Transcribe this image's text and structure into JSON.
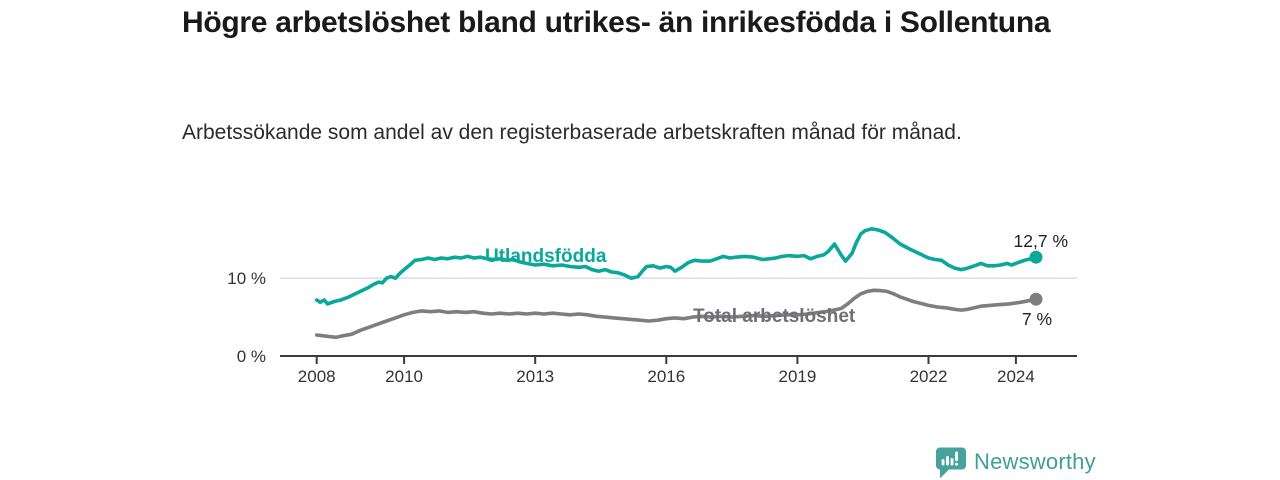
{
  "page": {
    "title": "Högre arbetslöshet bland utrikes- än inrikesfödda i Sollentuna",
    "subtitle": "Arbetssökande som andel av den registerbaserade arbetskraften månad för månad."
  },
  "branding": {
    "name": "Newsworthy",
    "icon": "newsworthy-speech-bubble-bar-chart-icon",
    "color": "#46a39c"
  },
  "colors": {
    "accent_teal": "#0aa79b",
    "line_gray": "#7e7e82",
    "label_gray": "#6f6f74",
    "text_dark": "#1a1a1a",
    "axis": "#3b3b3b",
    "gridline": "#d9d9d9",
    "value_label": "#222222"
  },
  "chart_data": {
    "type": "line",
    "title": "Högre arbetslöshet bland utrikes- än inrikesfödda i Sollentuna",
    "subtitle": "Arbetssökande som andel av den registerbaserade arbetskraften månad för månad.",
    "unit": "%",
    "grid": "horizontal-only",
    "legend_position": "inline-labels",
    "x_range_years": [
      2008.0,
      2024.5
    ],
    "y_axis": {
      "range": [
        0,
        17
      ],
      "ticks": [
        {
          "value": 0,
          "label": "0 %"
        },
        {
          "value": 10,
          "label": "10 %"
        }
      ]
    },
    "x_axis": {
      "ticks": [
        {
          "value": 2008,
          "label": "2008"
        },
        {
          "value": 2010,
          "label": "2010"
        },
        {
          "value": 2013,
          "label": "2013"
        },
        {
          "value": 2016,
          "label": "2016"
        },
        {
          "value": 2019,
          "label": "2019"
        },
        {
          "value": 2022,
          "label": "2022"
        },
        {
          "value": 2024,
          "label": "2024"
        }
      ]
    },
    "series": [
      {
        "name": "Utlandsfödda",
        "color": "#0aa79b",
        "end_label": "12,7 %",
        "end_value": 12.7,
        "points": [
          [
            2008.0,
            7.2
          ],
          [
            2008.08,
            6.9
          ],
          [
            2008.17,
            7.2
          ],
          [
            2008.25,
            6.7
          ],
          [
            2008.4,
            7.0
          ],
          [
            2008.55,
            7.2
          ],
          [
            2008.7,
            7.5
          ],
          [
            2008.85,
            7.9
          ],
          [
            2009.0,
            8.3
          ],
          [
            2009.15,
            8.7
          ],
          [
            2009.3,
            9.2
          ],
          [
            2009.42,
            9.5
          ],
          [
            2009.5,
            9.4
          ],
          [
            2009.6,
            10.0
          ],
          [
            2009.7,
            10.2
          ],
          [
            2009.8,
            10.0
          ],
          [
            2009.9,
            10.6
          ],
          [
            2010.0,
            11.1
          ],
          [
            2010.15,
            11.8
          ],
          [
            2010.25,
            12.3
          ],
          [
            2010.4,
            12.4
          ],
          [
            2010.55,
            12.6
          ],
          [
            2010.7,
            12.4
          ],
          [
            2010.85,
            12.6
          ],
          [
            2011.0,
            12.5
          ],
          [
            2011.15,
            12.7
          ],
          [
            2011.3,
            12.6
          ],
          [
            2011.45,
            12.8
          ],
          [
            2011.6,
            12.6
          ],
          [
            2011.75,
            12.7
          ],
          [
            2011.9,
            12.5
          ],
          [
            2012.05,
            12.4
          ],
          [
            2012.2,
            12.5
          ],
          [
            2012.35,
            12.3
          ],
          [
            2012.5,
            12.4
          ],
          [
            2012.65,
            12.1
          ],
          [
            2012.8,
            11.9
          ],
          [
            2013.0,
            11.7
          ],
          [
            2013.2,
            11.8
          ],
          [
            2013.4,
            11.6
          ],
          [
            2013.6,
            11.7
          ],
          [
            2013.8,
            11.5
          ],
          [
            2014.0,
            11.4
          ],
          [
            2014.15,
            11.5
          ],
          [
            2014.3,
            11.1
          ],
          [
            2014.45,
            10.9
          ],
          [
            2014.6,
            11.1
          ],
          [
            2014.75,
            10.8
          ],
          [
            2014.9,
            10.7
          ],
          [
            2015.05,
            10.4
          ],
          [
            2015.2,
            10.0
          ],
          [
            2015.35,
            10.2
          ],
          [
            2015.45,
            10.9
          ],
          [
            2015.55,
            11.5
          ],
          [
            2015.7,
            11.6
          ],
          [
            2015.85,
            11.3
          ],
          [
            2016.0,
            11.5
          ],
          [
            2016.1,
            11.4
          ],
          [
            2016.2,
            10.9
          ],
          [
            2016.35,
            11.4
          ],
          [
            2016.5,
            12.0
          ],
          [
            2016.65,
            12.3
          ],
          [
            2016.8,
            12.2
          ],
          [
            2017.0,
            12.2
          ],
          [
            2017.15,
            12.5
          ],
          [
            2017.3,
            12.8
          ],
          [
            2017.45,
            12.6
          ],
          [
            2017.6,
            12.7
          ],
          [
            2017.8,
            12.8
          ],
          [
            2018.0,
            12.7
          ],
          [
            2018.2,
            12.4
          ],
          [
            2018.35,
            12.5
          ],
          [
            2018.5,
            12.6
          ],
          [
            2018.65,
            12.8
          ],
          [
            2018.8,
            12.9
          ],
          [
            2019.0,
            12.8
          ],
          [
            2019.15,
            12.9
          ],
          [
            2019.3,
            12.5
          ],
          [
            2019.45,
            12.8
          ],
          [
            2019.6,
            13.0
          ],
          [
            2019.7,
            13.4
          ],
          [
            2019.85,
            14.4
          ],
          [
            2020.0,
            13.0
          ],
          [
            2020.1,
            12.2
          ],
          [
            2020.25,
            13.2
          ],
          [
            2020.35,
            14.6
          ],
          [
            2020.45,
            15.7
          ],
          [
            2020.55,
            16.1
          ],
          [
            2020.7,
            16.35
          ],
          [
            2020.85,
            16.2
          ],
          [
            2021.0,
            15.9
          ],
          [
            2021.15,
            15.3
          ],
          [
            2021.35,
            14.4
          ],
          [
            2021.55,
            13.8
          ],
          [
            2021.7,
            13.4
          ],
          [
            2021.85,
            13.0
          ],
          [
            2022.0,
            12.6
          ],
          [
            2022.15,
            12.4
          ],
          [
            2022.3,
            12.3
          ],
          [
            2022.45,
            11.7
          ],
          [
            2022.6,
            11.3
          ],
          [
            2022.75,
            11.1
          ],
          [
            2022.9,
            11.3
          ],
          [
            2023.05,
            11.6
          ],
          [
            2023.2,
            11.9
          ],
          [
            2023.35,
            11.6
          ],
          [
            2023.5,
            11.6
          ],
          [
            2023.65,
            11.7
          ],
          [
            2023.8,
            11.9
          ],
          [
            2023.9,
            11.7
          ],
          [
            2024.05,
            12.0
          ],
          [
            2024.2,
            12.3
          ],
          [
            2024.35,
            12.5
          ],
          [
            2024.46,
            12.7
          ]
        ]
      },
      {
        "name": "Total arbetslöshet",
        "color": "#7e7e82",
        "end_label": "7 %",
        "end_value": 7,
        "points": [
          [
            2008.0,
            2.7
          ],
          [
            2008.15,
            2.6
          ],
          [
            2008.3,
            2.5
          ],
          [
            2008.45,
            2.4
          ],
          [
            2008.6,
            2.6
          ],
          [
            2008.8,
            2.8
          ],
          [
            2009.0,
            3.3
          ],
          [
            2009.25,
            3.8
          ],
          [
            2009.5,
            4.3
          ],
          [
            2009.75,
            4.8
          ],
          [
            2010.0,
            5.3
          ],
          [
            2010.2,
            5.6
          ],
          [
            2010.4,
            5.8
          ],
          [
            2010.6,
            5.7
          ],
          [
            2010.8,
            5.8
          ],
          [
            2011.0,
            5.6
          ],
          [
            2011.2,
            5.7
          ],
          [
            2011.4,
            5.6
          ],
          [
            2011.6,
            5.7
          ],
          [
            2011.8,
            5.5
          ],
          [
            2012.0,
            5.4
          ],
          [
            2012.2,
            5.5
          ],
          [
            2012.4,
            5.4
          ],
          [
            2012.6,
            5.5
          ],
          [
            2012.8,
            5.4
          ],
          [
            2013.0,
            5.5
          ],
          [
            2013.2,
            5.4
          ],
          [
            2013.4,
            5.5
          ],
          [
            2013.6,
            5.4
          ],
          [
            2013.8,
            5.3
          ],
          [
            2014.0,
            5.4
          ],
          [
            2014.2,
            5.3
          ],
          [
            2014.4,
            5.1
          ],
          [
            2014.6,
            5.0
          ],
          [
            2014.8,
            4.9
          ],
          [
            2015.0,
            4.8
          ],
          [
            2015.2,
            4.7
          ],
          [
            2015.4,
            4.6
          ],
          [
            2015.6,
            4.5
          ],
          [
            2015.8,
            4.6
          ],
          [
            2016.0,
            4.8
          ],
          [
            2016.2,
            4.9
          ],
          [
            2016.4,
            4.8
          ],
          [
            2016.6,
            5.0
          ],
          [
            2016.8,
            5.1
          ],
          [
            2017.0,
            5.0
          ],
          [
            2017.25,
            5.1
          ],
          [
            2017.5,
            5.0
          ],
          [
            2017.75,
            5.1
          ],
          [
            2018.0,
            5.2
          ],
          [
            2018.25,
            5.1
          ],
          [
            2018.5,
            5.2
          ],
          [
            2018.75,
            5.3
          ],
          [
            2019.0,
            5.3
          ],
          [
            2019.25,
            5.4
          ],
          [
            2019.5,
            5.6
          ],
          [
            2019.75,
            5.8
          ],
          [
            2020.0,
            6.1
          ],
          [
            2020.15,
            6.7
          ],
          [
            2020.3,
            7.4
          ],
          [
            2020.45,
            8.0
          ],
          [
            2020.6,
            8.3
          ],
          [
            2020.75,
            8.45
          ],
          [
            2020.9,
            8.4
          ],
          [
            2021.05,
            8.3
          ],
          [
            2021.2,
            8.0
          ],
          [
            2021.35,
            7.6
          ],
          [
            2021.5,
            7.3
          ],
          [
            2021.65,
            7.0
          ],
          [
            2021.8,
            6.8
          ],
          [
            2022.0,
            6.5
          ],
          [
            2022.2,
            6.3
          ],
          [
            2022.4,
            6.2
          ],
          [
            2022.6,
            6.0
          ],
          [
            2022.75,
            5.9
          ],
          [
            2022.9,
            6.0
          ],
          [
            2023.05,
            6.2
          ],
          [
            2023.2,
            6.4
          ],
          [
            2023.4,
            6.5
          ],
          [
            2023.6,
            6.6
          ],
          [
            2023.85,
            6.7
          ],
          [
            2024.1,
            6.9
          ],
          [
            2024.28,
            7.1
          ],
          [
            2024.46,
            7.3
          ]
        ]
      }
    ]
  }
}
